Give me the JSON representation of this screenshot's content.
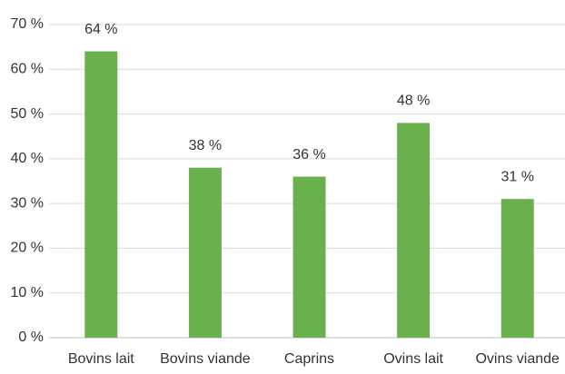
{
  "chart_data": {
    "type": "bar",
    "categories": [
      "Bovins lait",
      "Bovins viande",
      "Caprins",
      "Ovins lait",
      "Ovins viande"
    ],
    "values": [
      64,
      38,
      36,
      48,
      31
    ],
    "value_labels": [
      "64 %",
      "38 %",
      "36 %",
      "48 %",
      "31 %"
    ],
    "color": "#6ab04c",
    "ylim": [
      0,
      70
    ],
    "yticks": [
      {
        "value": 0,
        "label": "0 %"
      },
      {
        "value": 10,
        "label": "10 %"
      },
      {
        "value": 20,
        "label": "20 %"
      },
      {
        "value": 30,
        "label": "30 %"
      },
      {
        "value": 40,
        "label": "40 %"
      },
      {
        "value": 50,
        "label": "50 %"
      },
      {
        "value": 60,
        "label": "60 %"
      },
      {
        "value": 70,
        "label": "70 %"
      }
    ],
    "grid": true
  }
}
